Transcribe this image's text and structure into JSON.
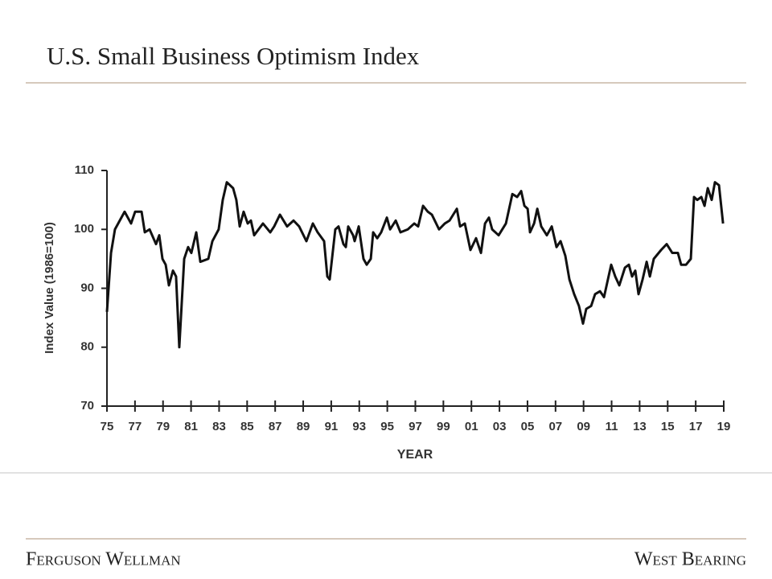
{
  "header": {
    "title": "U.S. Small Business Optimism Index"
  },
  "chart_data": {
    "type": "line",
    "xlabel": "YEAR",
    "ylabel": "Index Value (1986=100)",
    "color": "#111111",
    "xlim": [
      1975,
      2019
    ],
    "ylim": [
      70,
      110
    ],
    "xticks": [
      {
        "value": 1975,
        "label": "75"
      },
      {
        "value": 1977,
        "label": "77"
      },
      {
        "value": 1979,
        "label": "79"
      },
      {
        "value": 1981,
        "label": "81"
      },
      {
        "value": 1983,
        "label": "83"
      },
      {
        "value": 1985,
        "label": "85"
      },
      {
        "value": 1987,
        "label": "87"
      },
      {
        "value": 1989,
        "label": "89"
      },
      {
        "value": 1991,
        "label": "91"
      },
      {
        "value": 1993,
        "label": "93"
      },
      {
        "value": 1995,
        "label": "95"
      },
      {
        "value": 1997,
        "label": "97"
      },
      {
        "value": 1999,
        "label": "99"
      },
      {
        "value": 2001,
        "label": "01"
      },
      {
        "value": 2003,
        "label": "03"
      },
      {
        "value": 2005,
        "label": "05"
      },
      {
        "value": 2007,
        "label": "07"
      },
      {
        "value": 2009,
        "label": "09"
      },
      {
        "value": 2011,
        "label": "11"
      },
      {
        "value": 2013,
        "label": "13"
      },
      {
        "value": 2015,
        "label": "15"
      },
      {
        "value": 2017,
        "label": "17"
      },
      {
        "value": 2019,
        "label": "19"
      }
    ],
    "yticks": [
      70,
      80,
      90,
      100,
      110
    ],
    "x": [
      1975.0,
      1975.29,
      1975.57,
      1976.26,
      1976.72,
      1977.01,
      1977.47,
      1977.7,
      1978.04,
      1978.5,
      1978.73,
      1978.96,
      1979.19,
      1979.42,
      1979.71,
      1979.93,
      1980.16,
      1980.51,
      1980.79,
      1981.02,
      1981.37,
      1981.66,
      1982.23,
      1982.52,
      1982.97,
      1983.26,
      1983.55,
      1984.0,
      1984.23,
      1984.47,
      1984.75,
      1985.04,
      1985.27,
      1985.5,
      1986.13,
      1986.65,
      1986.93,
      1987.34,
      1987.85,
      1988.31,
      1988.71,
      1989.23,
      1989.69,
      1990.03,
      1990.49,
      1990.72,
      1990.89,
      1991.29,
      1991.52,
      1991.87,
      1992.04,
      1992.21,
      1992.56,
      1992.67,
      1992.96,
      1993.3,
      1993.53,
      1993.82,
      1993.99,
      1994.28,
      1994.56,
      1994.97,
      1995.2,
      1995.6,
      1995.94,
      1996.46,
      1996.92,
      1997.2,
      1997.55,
      1997.89,
      1998.18,
      1998.69,
      1999.1,
      1999.44,
      1999.96,
      2000.19,
      2000.53,
      2000.93,
      2001.33,
      2001.68,
      2001.97,
      2002.25,
      2002.48,
      2002.94,
      2003.46,
      2003.92,
      2004.26,
      2004.55,
      2004.78,
      2005.01,
      2005.18,
      2005.47,
      2005.7,
      2005.98,
      2006.38,
      2006.73,
      2007.07,
      2007.36,
      2007.7,
      2007.99,
      2008.33,
      2008.67,
      2008.96,
      2009.19,
      2009.54,
      2009.82,
      2010.17,
      2010.46,
      2010.69,
      2010.97,
      2011.26,
      2011.55,
      2011.95,
      2012.23,
      2012.46,
      2012.69,
      2012.92,
      2013.21,
      2013.5,
      2013.73,
      2014.01,
      2014.53,
      2014.93,
      2015.33,
      2015.73,
      2015.96,
      2016.31,
      2016.65,
      2016.88,
      2017.11,
      2017.4,
      2017.63,
      2017.86,
      2018.14,
      2018.37,
      2018.66,
      2018.95
    ],
    "values": [
      86,
      96,
      100,
      103,
      101,
      103,
      103,
      99.5,
      100,
      97.5,
      99,
      95,
      94,
      90.5,
      93,
      92,
      80,
      95,
      97,
      96,
      99.5,
      94.5,
      95,
      98,
      100,
      105,
      108,
      107,
      105,
      100.5,
      103,
      101,
      101.5,
      99,
      101,
      99.5,
      100.5,
      102.5,
      100.5,
      101.5,
      100.5,
      98,
      101,
      99.5,
      98,
      92,
      91.5,
      100,
      100.5,
      97.5,
      97,
      100.5,
      99,
      98,
      100.5,
      95,
      94,
      95,
      99.5,
      98.5,
      99.5,
      102,
      100,
      101.5,
      99.5,
      100,
      101,
      100.5,
      104,
      103,
      102.5,
      100,
      101,
      101.5,
      103.5,
      100.5,
      101,
      96.5,
      98.5,
      96,
      101,
      102,
      100,
      99,
      101,
      106,
      105.5,
      106.5,
      104,
      103.5,
      99.5,
      101,
      103.5,
      100.5,
      99,
      100.5,
      97,
      98,
      95.5,
      91.5,
      89,
      87,
      84,
      86.5,
      87,
      89,
      89.5,
      88.5,
      91,
      94,
      92,
      90.5,
      93.5,
      94,
      92,
      93,
      89,
      91.5,
      94.5,
      92,
      95,
      96.5,
      97.5,
      96,
      96,
      94,
      94,
      95,
      105.5,
      105,
      105.5,
      104,
      107,
      105,
      108,
      107.5,
      101
    ]
  },
  "footer": {
    "left": "Ferguson Wellman",
    "right": "West Bearing"
  }
}
